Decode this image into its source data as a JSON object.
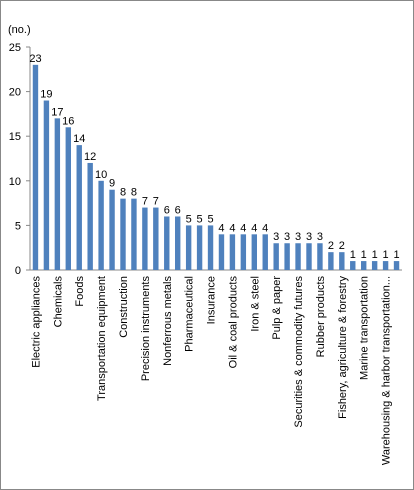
{
  "chart_data": {
    "type": "bar",
    "ylabel": "(no.)",
    "categories": [
      "Electric appliances",
      null,
      "Chemicals",
      null,
      "Foods",
      null,
      "Transportation equipment",
      null,
      "Construction",
      null,
      "Precision instruments",
      null,
      "Nonferrous metals",
      null,
      "Pharmaceutical",
      null,
      "Insurance",
      null,
      "Oil & coal products",
      null,
      "Iron & steel",
      null,
      "Pulp & paper",
      null,
      "Securities & commodity futures",
      null,
      "Rubber products",
      null,
      "Fishery, agriculture & forestry",
      null,
      "Marine transportation",
      null,
      "Warehousing & harbor transportation...",
      null
    ],
    "values": [
      23,
      19,
      17,
      16,
      14,
      12,
      10,
      9,
      8,
      8,
      7,
      7,
      6,
      6,
      5,
      5,
      5,
      4,
      4,
      4,
      4,
      4,
      3,
      3,
      3,
      3,
      3,
      2,
      2,
      1,
      1,
      1,
      1,
      1
    ],
    "color": "#4f81bd",
    "ylim": [
      0,
      25
    ],
    "yticks": [
      0,
      5,
      10,
      15,
      20,
      25
    ],
    "grid": false
  }
}
